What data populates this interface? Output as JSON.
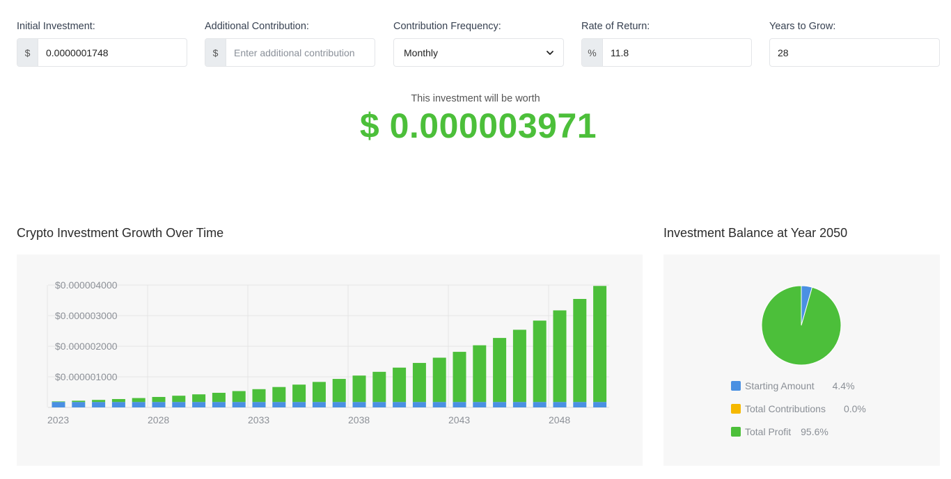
{
  "form": {
    "initial": {
      "label": "Initial Investment:",
      "prefix": "$",
      "value": "0.0000001748",
      "placeholder": ""
    },
    "additional": {
      "label": "Additional Contribution:",
      "prefix": "$",
      "value": "",
      "placeholder": "Enter additional contribution"
    },
    "frequency": {
      "label": "Contribution Frequency:",
      "selected": "Monthly",
      "icon": "chevron-down-icon"
    },
    "rate": {
      "label": "Rate of Return:",
      "prefix": "%",
      "value": "11.8",
      "placeholder": ""
    },
    "years": {
      "label": "Years to Grow:",
      "value": "28",
      "placeholder": ""
    }
  },
  "result": {
    "label": "This investment will be worth",
    "value": "$ 0.000003971",
    "color": "#4cbf3a"
  },
  "growth_chart": {
    "title": "Crypto Investment Growth Over Time"
  },
  "pie_chart": {
    "title": "Investment Balance at Year 2050"
  },
  "colors": {
    "starting": "#4a90e2",
    "contributions": "#f5b800",
    "profit": "#4cbf3a"
  },
  "chart_data": [
    {
      "type": "bar",
      "stacked": true,
      "title": "Crypto Investment Growth Over Time",
      "x": [
        2023,
        2024,
        2025,
        2026,
        2027,
        2028,
        2029,
        2030,
        2031,
        2032,
        2033,
        2034,
        2035,
        2036,
        2037,
        2038,
        2039,
        2040,
        2041,
        2042,
        2043,
        2044,
        2045,
        2046,
        2047,
        2048,
        2049,
        2050
      ],
      "x_tick_labels": [
        "2023",
        "2028",
        "2033",
        "2038",
        "2043",
        "2048"
      ],
      "y_tick_labels": [
        "$0.000001000",
        "$0.000002000",
        "$0.000003000",
        "$0.000004000"
      ],
      "y_ticks": [
        1e-06,
        2e-06,
        3e-06,
        4e-06
      ],
      "ylim": [
        0,
        4e-06
      ],
      "grid": true,
      "series": [
        {
          "key": "starting",
          "values": [
            1.748e-07,
            1.748e-07,
            1.748e-07,
            1.748e-07,
            1.748e-07,
            1.748e-07,
            1.748e-07,
            1.748e-07,
            1.748e-07,
            1.748e-07,
            1.748e-07,
            1.748e-07,
            1.748e-07,
            1.748e-07,
            1.748e-07,
            1.748e-07,
            1.748e-07,
            1.748e-07,
            1.748e-07,
            1.748e-07,
            1.748e-07,
            1.748e-07,
            1.748e-07,
            1.748e-07,
            1.748e-07,
            1.748e-07,
            1.748e-07,
            1.748e-07
          ]
        },
        {
          "key": "profit",
          "values": [
            2.06e-08,
            4.37e-08,
            6.95e-08,
            9.83e-08,
            1.306e-07,
            1.666e-07,
            2.069e-07,
            2.519e-07,
            3.022e-07,
            3.584e-07,
            4.212e-07,
            4.915e-07,
            5.7e-07,
            6.578e-07,
            7.559e-07,
            8.656e-07,
            9.883e-07,
            1.1254e-06,
            1.2787e-06,
            1.4501e-06,
            1.6417e-06,
            1.8559e-06,
            2.0953e-06,
            2.3629e-06,
            2.6622e-06,
            2.9966e-06,
            3.3706e-06,
            3.7962e-06
          ]
        }
      ]
    },
    {
      "type": "pie",
      "title": "Investment Balance at Year 2050",
      "slices": [
        {
          "key": "starting",
          "label": "Starting Amount",
          "value": 4.4,
          "display": "4.4%"
        },
        {
          "key": "contributions",
          "label": "Total Contributions",
          "value": 0.0,
          "display": "0.0%"
        },
        {
          "key": "profit",
          "label": "Total Profit",
          "value": 95.6,
          "display": "95.6%"
        }
      ],
      "legend_position": "bottom"
    }
  ]
}
